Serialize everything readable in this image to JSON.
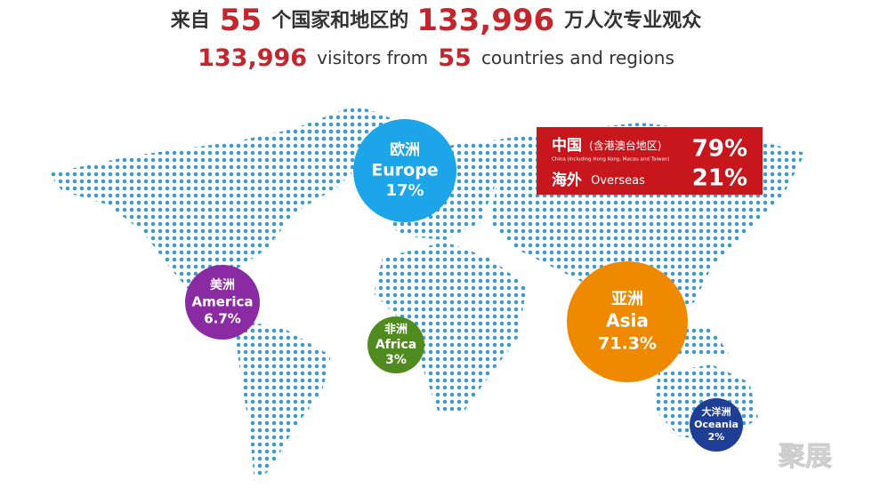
{
  "header": {
    "line1": [
      "来自",
      "55",
      "个国家和地区的",
      "133,996",
      "万人次专业观众"
    ],
    "line2": [
      "133,996",
      "visitors from",
      "55",
      "countries and regions"
    ]
  },
  "regions": [
    {
      "cn": "欧洲",
      "en": "Europe",
      "share": "17%"
    },
    {
      "cn": "美洲",
      "en": "America",
      "share": "6.7%"
    },
    {
      "cn": "非洲",
      "en": "Africa",
      "share": "3%"
    },
    {
      "cn": "亚洲",
      "en": "Asia",
      "share": "71.3%"
    },
    {
      "cn": "大洋洲",
      "en": "Oceania",
      "share": "2%"
    }
  ],
  "china_box": {
    "china": {
      "label": "中国",
      "note": "(含港澳台地区)",
      "sub": "China (including Hong Kong, Macau and Taiwan)",
      "share": "79%"
    },
    "overseas": {
      "label": "海外",
      "en": "Overseas",
      "share": "21%"
    }
  },
  "watermark": "聚展"
}
